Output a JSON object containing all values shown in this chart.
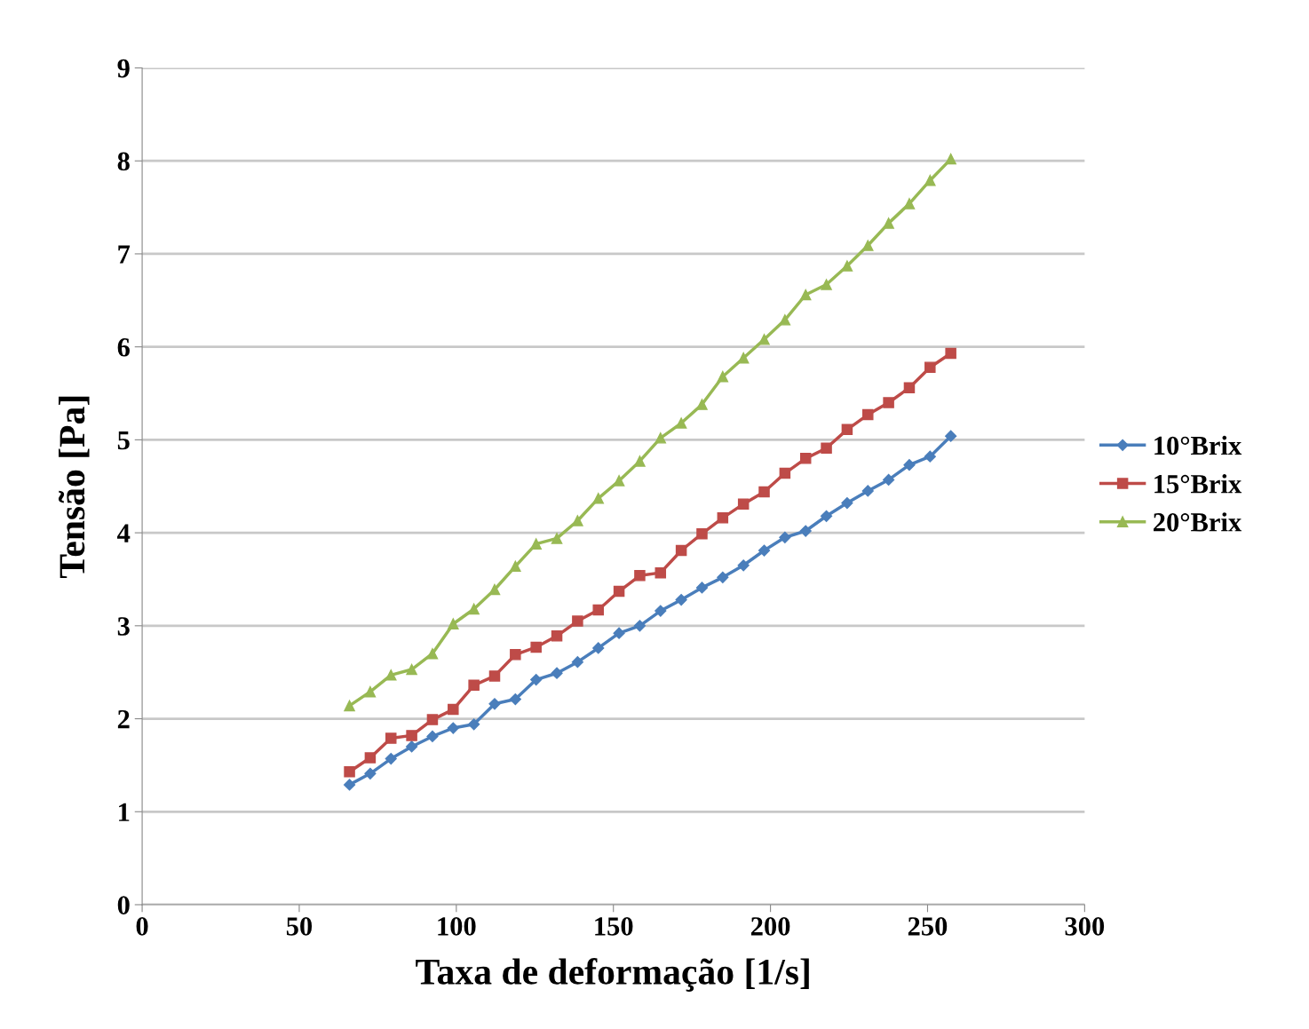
{
  "chart_data": {
    "type": "line",
    "xlabel": "Taxa de deformação [1/s]",
    "ylabel": "Tensão [Pa]",
    "x": [
      66.0,
      72.6,
      79.2,
      85.8,
      92.4,
      99.0,
      105.6,
      112.2,
      118.8,
      125.4,
      132.0,
      138.6,
      145.2,
      151.8,
      158.4,
      165.0,
      171.6,
      178.2,
      184.8,
      191.4,
      198.0,
      204.6,
      211.2,
      217.8,
      224.4,
      231.0,
      237.6,
      244.2,
      250.8,
      257.4
    ],
    "series": [
      {
        "name": "10°Brix",
        "color": "#4a7ebb",
        "marker": "diamond",
        "values": [
          1.29,
          1.41,
          1.57,
          1.7,
          1.81,
          1.9,
          1.94,
          2.16,
          2.21,
          2.42,
          2.49,
          2.61,
          2.76,
          2.92,
          3.0,
          3.16,
          3.28,
          3.41,
          3.52,
          3.65,
          3.81,
          3.95,
          4.02,
          4.18,
          4.32,
          4.45,
          4.57,
          4.73,
          4.82,
          5.04
        ]
      },
      {
        "name": "15°Brix",
        "color": "#be4b48",
        "marker": "square",
        "values": [
          1.43,
          1.58,
          1.79,
          1.82,
          1.99,
          2.1,
          2.36,
          2.46,
          2.69,
          2.77,
          2.89,
          3.05,
          3.17,
          3.37,
          3.54,
          3.57,
          3.81,
          3.99,
          4.16,
          4.31,
          4.44,
          4.64,
          4.8,
          4.91,
          5.11,
          5.27,
          5.4,
          5.56,
          5.78,
          5.93
        ]
      },
      {
        "name": "20°Brix",
        "color": "#98b954",
        "marker": "triangle",
        "values": [
          2.14,
          2.29,
          2.47,
          2.53,
          2.7,
          3.02,
          3.18,
          3.39,
          3.64,
          3.88,
          3.94,
          4.13,
          4.37,
          4.56,
          4.77,
          5.02,
          5.18,
          5.38,
          5.68,
          5.88,
          6.08,
          6.29,
          6.56,
          6.67,
          6.87,
          7.09,
          7.33,
          7.54,
          7.79,
          8.02
        ]
      }
    ],
    "xlim": [
      0,
      300
    ],
    "xticks": [
      0,
      50,
      100,
      150,
      200,
      250,
      300
    ],
    "ylim": [
      0,
      9
    ],
    "yticks": [
      0,
      1,
      2,
      3,
      4,
      5,
      6,
      7,
      8,
      9
    ],
    "grid": "y",
    "legend": "right",
    "line_style": "solid"
  }
}
